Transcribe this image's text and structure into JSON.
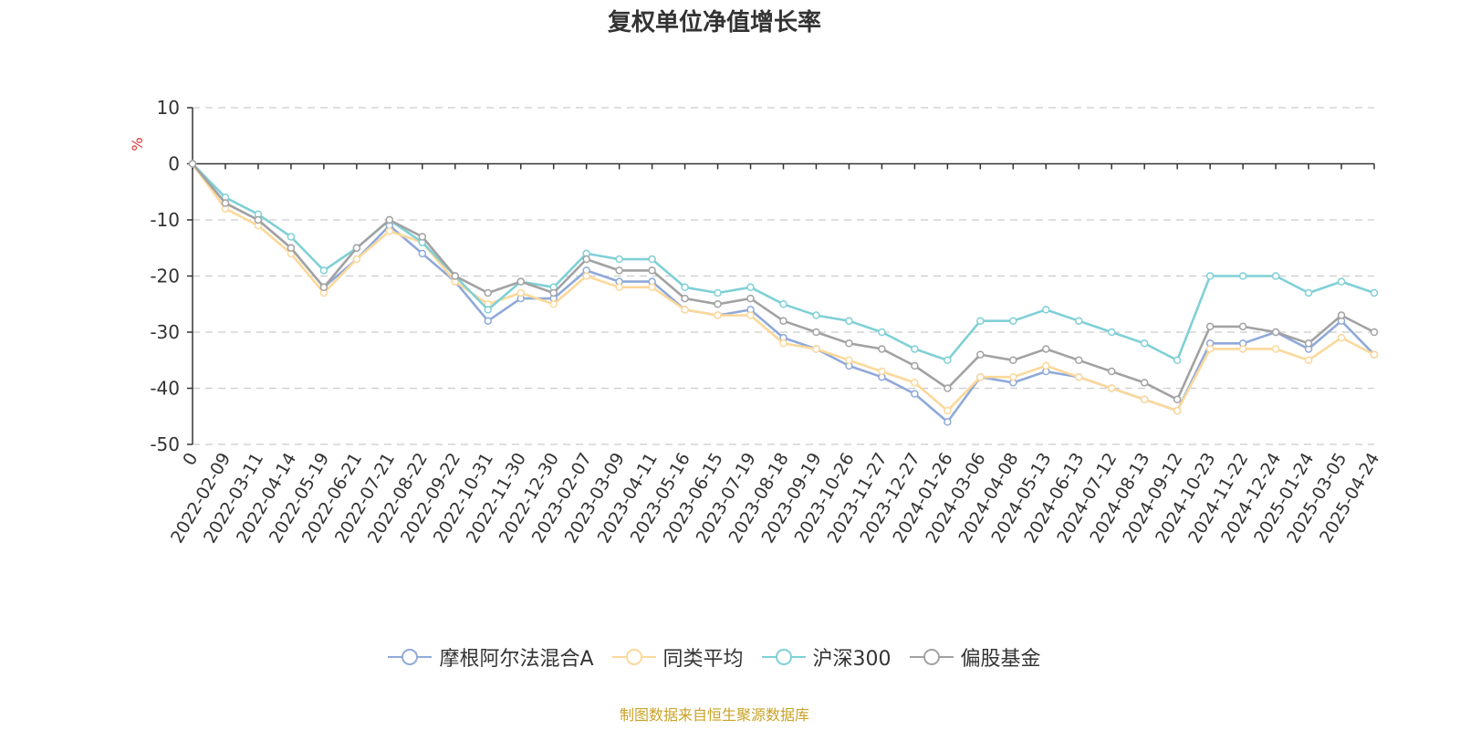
{
  "title": "复权单位净值增长率",
  "ylabel": "%",
  "source_note": "制图数据来自恒生聚源数据库",
  "colors": {
    "fund": "#8fa9d9",
    "peer": "#fcd89a",
    "hs300": "#7fd0d6",
    "equity": "#a2a2a2",
    "grid": "#cccccc",
    "axis": "#333333",
    "ylabel": "#e03030"
  },
  "chart_data": {
    "type": "line",
    "title": "复权单位净值增长率",
    "ylabel": "%",
    "ylim": [
      -50,
      10
    ],
    "yticks": [
      10,
      0,
      -10,
      -20,
      -30,
      -40,
      -50
    ],
    "grid": true,
    "legend_position": "bottom",
    "x_labels": [
      "0",
      "2022-02-09",
      "2022-03-11",
      "2022-04-14",
      "2022-05-19",
      "2022-06-21",
      "2022-07-21",
      "2022-08-22",
      "2022-09-22",
      "2022-10-31",
      "2022-11-30",
      "2022-12-30",
      "2023-02-07",
      "2023-03-09",
      "2023-04-11",
      "2023-05-16",
      "2023-06-15",
      "2023-07-19",
      "2023-08-18",
      "2023-09-19",
      "2023-10-26",
      "2023-11-27",
      "2023-12-27",
      "2024-01-26",
      "2024-03-06",
      "2024-04-08",
      "2024-05-13",
      "2024-06-13",
      "2024-07-12",
      "2024-08-13",
      "2024-09-12",
      "2024-10-23",
      "2024-11-22",
      "2024-12-24",
      "2025-01-24",
      "2025-03-05",
      "2025-04-24"
    ],
    "series": [
      {
        "name": "摩根阿尔法混合A",
        "key": "fund",
        "values": [
          0,
          -7,
          -10,
          -15,
          -22,
          -17,
          -11,
          -16,
          -21,
          -28,
          -24,
          -24,
          -19,
          -21,
          -21,
          -26,
          -27,
          -26,
          -31,
          -33,
          -36,
          -38,
          -41,
          -46,
          -38,
          -39,
          -37,
          -38,
          -40,
          -42,
          -44,
          -32,
          -32,
          -30,
          -33,
          -28,
          -34
        ]
      },
      {
        "name": "同类平均",
        "key": "peer",
        "values": [
          0,
          -8,
          -11,
          -16,
          -23,
          -17,
          -12,
          -14,
          -21,
          -25,
          -23,
          -25,
          -20,
          -22,
          -22,
          -26,
          -27,
          -27,
          -32,
          -33,
          -35,
          -37,
          -39,
          -44,
          -38,
          -38,
          -36,
          -38,
          -40,
          -42,
          -44,
          -33,
          -33,
          -33,
          -35,
          -31,
          -34
        ]
      },
      {
        "name": "沪深300",
        "key": "hs300",
        "values": [
          0,
          -6,
          -9,
          -13,
          -19,
          -15,
          -10,
          -14,
          -20,
          -26,
          -21,
          -22,
          -16,
          -17,
          -17,
          -22,
          -23,
          -22,
          -25,
          -27,
          -28,
          -30,
          -33,
          -35,
          -28,
          -28,
          -26,
          -28,
          -30,
          -32,
          -35,
          -20,
          -20,
          -20,
          -23,
          -21,
          -23
        ]
      },
      {
        "name": "偏股基金",
        "key": "equity",
        "values": [
          0,
          -7,
          -10,
          -15,
          -22,
          -15,
          -10,
          -13,
          -20,
          -23,
          -21,
          -23,
          -17,
          -19,
          -19,
          -24,
          -25,
          -24,
          -28,
          -30,
          -32,
          -33,
          -36,
          -40,
          -34,
          -35,
          -33,
          -35,
          -37,
          -39,
          -42,
          -29,
          -29,
          -30,
          -32,
          -27,
          -30
        ]
      }
    ]
  }
}
